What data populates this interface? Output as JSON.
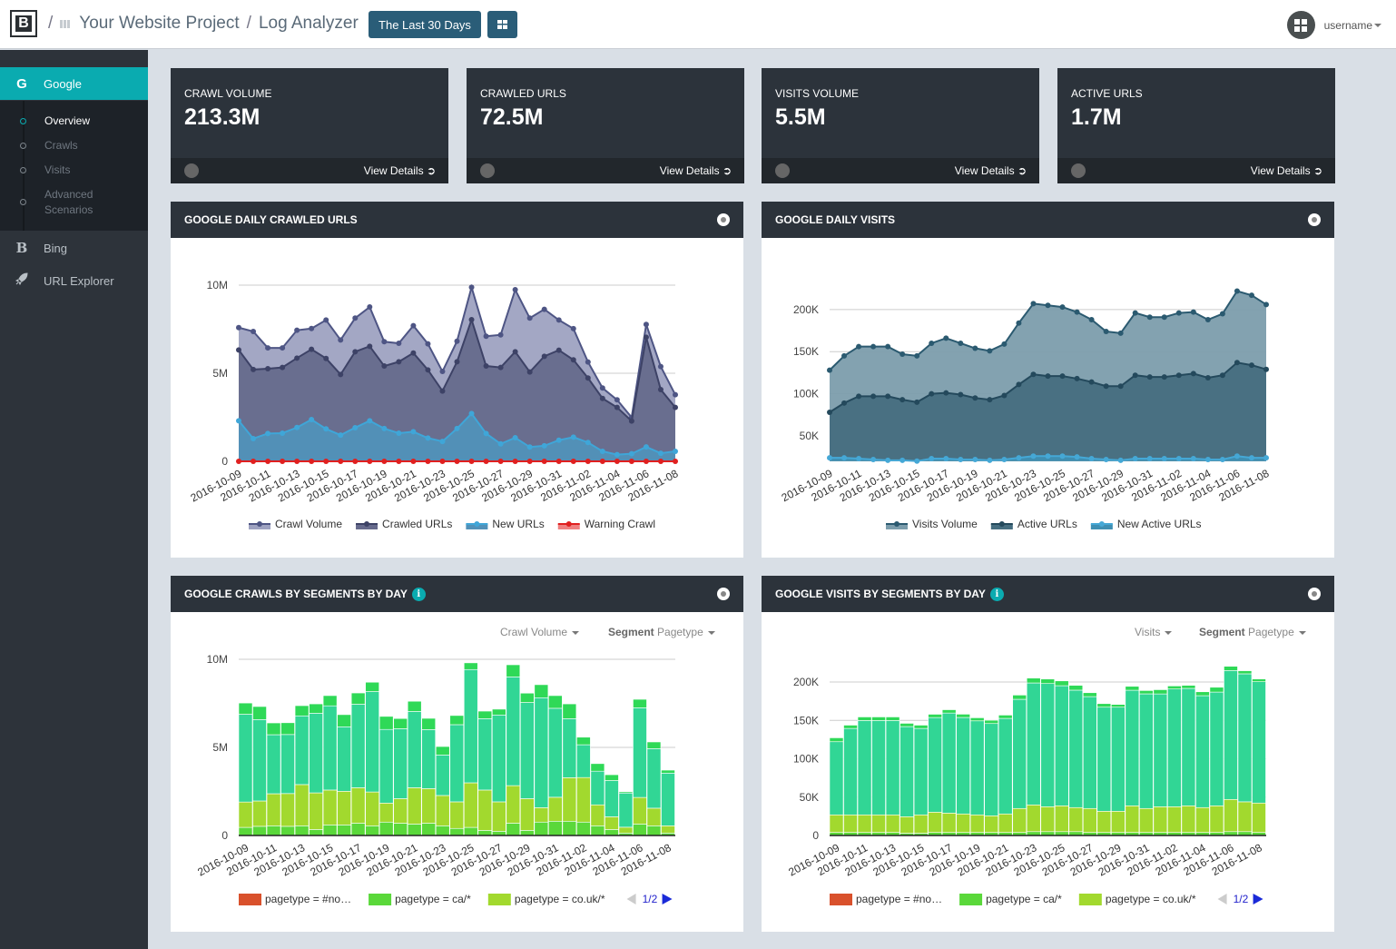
{
  "header": {
    "logo": "B",
    "project": "Your Website Project",
    "page": "Log Analyzer",
    "date_range": "The Last 30 Days",
    "username": "username"
  },
  "sidebar": {
    "items": [
      {
        "label": "Google",
        "icon": "G"
      },
      {
        "label": "Bing",
        "icon": "B"
      },
      {
        "label": "URL Explorer",
        "icon": "rocket"
      }
    ],
    "sub_items": [
      {
        "label": "Overview"
      },
      {
        "label": "Crawls"
      },
      {
        "label": "Visits"
      },
      {
        "label": "Advanced Scenarios"
      }
    ]
  },
  "stats": [
    {
      "label": "CRAWL VOLUME",
      "value": "213.3M",
      "link": "View Details"
    },
    {
      "label": "CRAWLED URLS",
      "value": "72.5M",
      "link": "View Details"
    },
    {
      "label": "VISITS VOLUME",
      "value": "5.5M",
      "link": "View Details"
    },
    {
      "label": "ACTIVE URLS",
      "value": "1.7M",
      "link": "View Details"
    }
  ],
  "panels": [
    {
      "title": "GOOGLE DAILY CRAWLED URLS"
    },
    {
      "title": "GOOGLE DAILY VISITS"
    },
    {
      "title": "GOOGLE CRAWLS BY SEGMENTS BY DAY",
      "metric": "Crawl Volume",
      "segment_label": "Segment",
      "segment_value": "Pagetype"
    },
    {
      "title": "GOOGLE VISITS BY SEGMENTS BY DAY",
      "metric": "Visits",
      "segment_label": "Segment",
      "segment_value": "Pagetype"
    }
  ],
  "colors": {
    "accent": "#0aabb0",
    "header_btn": "#2a5d78",
    "panel_header": "#2c333b"
  },
  "chart_data": [
    {
      "type": "area",
      "grid": true,
      "legend": "bottom",
      "ylim": [
        0,
        10000000
      ],
      "yticks": [
        {
          "v": 0,
          "label": "0"
        },
        {
          "v": 5000000,
          "label": "5M"
        },
        {
          "v": 10000000,
          "label": "10M"
        }
      ],
      "x": [
        "2016-10-09",
        "2016-10-10",
        "2016-10-11",
        "2016-10-12",
        "2016-10-13",
        "2016-10-14",
        "2016-10-15",
        "2016-10-16",
        "2016-10-17",
        "2016-10-18",
        "2016-10-19",
        "2016-10-20",
        "2016-10-21",
        "2016-10-22",
        "2016-10-23",
        "2016-10-24",
        "2016-10-25",
        "2016-10-26",
        "2016-10-27",
        "2016-10-28",
        "2016-10-29",
        "2016-10-30",
        "2016-10-31",
        "2016-11-01",
        "2016-11-02",
        "2016-11-03",
        "2016-11-04",
        "2016-11-05",
        "2016-11-06",
        "2016-11-07",
        "2016-11-08"
      ],
      "series": [
        {
          "name": "Crawl Volume",
          "fill": "#9ea2c1",
          "line": "#4e5584",
          "values": [
            7590000,
            7370000,
            6440000,
            6440000,
            7440000,
            7540000,
            8020000,
            6890000,
            8130000,
            8760000,
            6790000,
            6700000,
            7700000,
            6670000,
            5100000,
            6820000,
            9880000,
            7100000,
            7180000,
            9740000,
            8130000,
            8630000,
            8020000,
            7530000,
            5640000,
            4160000,
            3490000,
            2490000,
            7770000,
            5380000,
            3780000
          ]
        },
        {
          "name": "Crawled URLs",
          "fill": "#666a8c",
          "line": "#3d4266",
          "values": [
            6320000,
            5210000,
            5260000,
            5330000,
            5860000,
            6360000,
            5840000,
            4930000,
            6220000,
            6530000,
            5410000,
            5650000,
            6150000,
            5190000,
            3990000,
            5650000,
            8040000,
            5410000,
            5330000,
            6220000,
            5070000,
            5960000,
            6310000,
            5760000,
            4730000,
            3570000,
            3060000,
            2290000,
            7040000,
            4070000,
            3060000
          ]
        },
        {
          "name": "New URLs",
          "fill": "#5191b9",
          "line": "#3fa6d8",
          "values": [
            2300000,
            1290000,
            1580000,
            1600000,
            1920000,
            2370000,
            1840000,
            1490000,
            1910000,
            2300000,
            1860000,
            1600000,
            1680000,
            1320000,
            1130000,
            1860000,
            2710000,
            1580000,
            990000,
            1340000,
            810000,
            880000,
            1200000,
            1370000,
            1070000,
            570000,
            380000,
            430000,
            820000,
            460000,
            570000
          ]
        },
        {
          "name": "Warning Crawl",
          "fill": "#ef8080",
          "line": "#e02020",
          "values": [
            0,
            0,
            0,
            0,
            0,
            0,
            0,
            0,
            0,
            0,
            0,
            0,
            0,
            0,
            0,
            0,
            0,
            0,
            0,
            0,
            0,
            0,
            0,
            0,
            0,
            0,
            0,
            0,
            0,
            0,
            0
          ]
        }
      ]
    },
    {
      "type": "area",
      "grid": true,
      "legend": "bottom",
      "ylim": [
        20000,
        225000
      ],
      "yticks": [
        {
          "v": 50000,
          "label": "50K"
        },
        {
          "v": 100000,
          "label": "100K"
        },
        {
          "v": 150000,
          "label": "150K"
        },
        {
          "v": 200000,
          "label": "200K"
        }
      ],
      "x": [
        "2016-10-09",
        "2016-10-10",
        "2016-10-11",
        "2016-10-12",
        "2016-10-13",
        "2016-10-14",
        "2016-10-15",
        "2016-10-16",
        "2016-10-17",
        "2016-10-18",
        "2016-10-19",
        "2016-10-20",
        "2016-10-21",
        "2016-10-22",
        "2016-10-23",
        "2016-10-24",
        "2016-10-25",
        "2016-10-26",
        "2016-10-27",
        "2016-10-28",
        "2016-10-29",
        "2016-10-30",
        "2016-10-31",
        "2016-11-01",
        "2016-11-02",
        "2016-11-03",
        "2016-11-04",
        "2016-11-05",
        "2016-11-06",
        "2016-11-07",
        "2016-11-08"
      ],
      "series": [
        {
          "name": "Visits Volume",
          "fill": "#7c9dac",
          "line": "#2b5a70",
          "values": [
            128000,
            145000,
            156000,
            156000,
            156000,
            147000,
            145000,
            160000,
            166000,
            160000,
            154000,
            151000,
            159000,
            184000,
            207000,
            205000,
            203000,
            197000,
            188000,
            174000,
            172000,
            196000,
            191000,
            191000,
            196000,
            197000,
            188000,
            195000,
            222000,
            217000,
            206000
          ]
        },
        {
          "name": "Active URLs",
          "fill": "#466e80",
          "line": "#24495c",
          "values": [
            78000,
            89000,
            97000,
            97000,
            97000,
            93000,
            90000,
            100000,
            101000,
            99000,
            95000,
            93000,
            98000,
            111000,
            123000,
            121000,
            121000,
            118000,
            114000,
            109000,
            109000,
            122000,
            120000,
            120000,
            122000,
            124000,
            119000,
            122000,
            137000,
            134000,
            129000
          ]
        },
        {
          "name": "New Active URLs",
          "fill": "#3f8fb3",
          "line": "#45a8d6",
          "values": [
            24000,
            24000,
            23000,
            22000,
            21000,
            21000,
            20000,
            23000,
            23000,
            22000,
            22000,
            21000,
            22000,
            24000,
            26000,
            26000,
            26000,
            25000,
            23000,
            22000,
            21000,
            23000,
            23000,
            23000,
            23000,
            23000,
            22000,
            22000,
            26000,
            24000,
            24000
          ]
        }
      ]
    },
    {
      "type": "bar",
      "stacked": true,
      "grid": true,
      "legend": "bottom",
      "legend_page": "1/2",
      "ylim": [
        0,
        10000000
      ],
      "yticks": [
        {
          "v": 0,
          "label": "0"
        },
        {
          "v": 5000000,
          "label": "5M"
        },
        {
          "v": 10000000,
          "label": "10M"
        }
      ],
      "x": [
        "2016-10-09",
        "2016-10-10",
        "2016-10-11",
        "2016-10-12",
        "2016-10-13",
        "2016-10-14",
        "2016-10-15",
        "2016-10-16",
        "2016-10-17",
        "2016-10-18",
        "2016-10-19",
        "2016-10-20",
        "2016-10-21",
        "2016-10-22",
        "2016-10-23",
        "2016-10-24",
        "2016-10-25",
        "2016-10-26",
        "2016-10-27",
        "2016-10-28",
        "2016-10-29",
        "2016-10-30",
        "2016-10-31",
        "2016-11-01",
        "2016-11-02",
        "2016-11-03",
        "2016-11-04",
        "2016-11-05",
        "2016-11-06",
        "2016-11-07",
        "2016-11-08"
      ],
      "series": [
        {
          "name": "pagetype = #no…",
          "color": "#d9512c",
          "values": [
            0,
            0,
            0,
            0,
            0,
            0,
            0,
            0,
            0,
            0,
            0,
            0,
            0,
            0,
            0,
            0,
            0,
            0,
            0,
            0,
            0,
            0,
            0,
            0,
            0,
            0,
            0,
            0,
            0,
            0,
            0
          ]
        },
        {
          "name": "pagetype = ca/*",
          "color": "#5ad83a",
          "values": [
            460000,
            520000,
            550000,
            520000,
            550000,
            340000,
            600000,
            600000,
            700000,
            550000,
            760000,
            700000,
            650000,
            700000,
            550000,
            400000,
            460000,
            290000,
            240000,
            700000,
            290000,
            760000,
            810000,
            810000,
            760000,
            550000,
            340000,
            140000,
            650000,
            550000,
            140000
          ]
        },
        {
          "name": "pagetype = co.uk/*",
          "color": "#a2d92e",
          "values": [
            1440000,
            1440000,
            1820000,
            1860000,
            2340000,
            2080000,
            1980000,
            1910000,
            2010000,
            1920000,
            1080000,
            1390000,
            2060000,
            1960000,
            1720000,
            1510000,
            2530000,
            2290000,
            1670000,
            2130000,
            1800000,
            820000,
            1360000,
            2470000,
            2530000,
            1190000,
            720000,
            330000,
            1510000,
            1000000,
            410000
          ]
        },
        {
          "color": "#31d695",
          "values": [
            4980000,
            4620000,
            3350000,
            3350000,
            3900000,
            4520000,
            4780000,
            3660000,
            4740000,
            5700000,
            4180000,
            3970000,
            4330000,
            3350000,
            2300000,
            4380000,
            6430000,
            4050000,
            4930000,
            6170000,
            5460000,
            6240000,
            5050000,
            3350000,
            1860000,
            1910000,
            2060000,
            1940000,
            5090000,
            3380000,
            2990000
          ]
        },
        {
          "color": "#2fd957",
          "values": [
            640000,
            740000,
            670000,
            670000,
            580000,
            530000,
            580000,
            690000,
            640000,
            530000,
            740000,
            580000,
            580000,
            640000,
            480000,
            520000,
            380000,
            430000,
            330000,
            690000,
            530000,
            740000,
            720000,
            840000,
            430000,
            430000,
            330000,
            70000,
            480000,
            380000,
            170000
          ]
        }
      ]
    },
    {
      "type": "bar",
      "stacked": true,
      "grid": true,
      "legend": "bottom",
      "legend_page": "1/2",
      "ylim": [
        0,
        225000
      ],
      "yticks": [
        {
          "v": 0,
          "label": "0"
        },
        {
          "v": 50000,
          "label": "50K"
        },
        {
          "v": 100000,
          "label": "100K"
        },
        {
          "v": 150000,
          "label": "150K"
        },
        {
          "v": 200000,
          "label": "200K"
        }
      ],
      "x": [
        "2016-10-09",
        "2016-10-10",
        "2016-10-11",
        "2016-10-12",
        "2016-10-13",
        "2016-10-14",
        "2016-10-15",
        "2016-10-16",
        "2016-10-17",
        "2016-10-18",
        "2016-10-19",
        "2016-10-20",
        "2016-10-21",
        "2016-10-22",
        "2016-10-23",
        "2016-10-24",
        "2016-10-25",
        "2016-10-26",
        "2016-10-27",
        "2016-10-28",
        "2016-10-29",
        "2016-10-30",
        "2016-10-31",
        "2016-11-01",
        "2016-11-02",
        "2016-11-03",
        "2016-11-04",
        "2016-11-05",
        "2016-11-06",
        "2016-11-07",
        "2016-11-08"
      ],
      "series": [
        {
          "name": "pagetype = #no…",
          "color": "#d9512c",
          "values": [
            0,
            0,
            0,
            0,
            0,
            0,
            0,
            0,
            0,
            0,
            0,
            0,
            0,
            0,
            0,
            0,
            0,
            0,
            0,
            0,
            0,
            0,
            0,
            0,
            0,
            0,
            0,
            0,
            0,
            0,
            0
          ]
        },
        {
          "name": "pagetype = ca/*",
          "color": "#5ad83a",
          "values": [
            4000,
            4000,
            4000,
            4000,
            4000,
            3000,
            3000,
            4000,
            4000,
            4000,
            4000,
            4000,
            4000,
            4000,
            5000,
            5000,
            5000,
            5000,
            4000,
            4000,
            4000,
            4000,
            4000,
            4000,
            4000,
            4000,
            4000,
            4000,
            5000,
            5000,
            4000
          ]
        },
        {
          "name": "pagetype = co.uk/*",
          "color": "#a2d92e",
          "values": [
            22900,
            22900,
            22900,
            22900,
            22900,
            21500,
            23900,
            26400,
            25200,
            24100,
            22900,
            21700,
            24100,
            31200,
            34900,
            32500,
            33700,
            31400,
            31200,
            27600,
            27600,
            34700,
            31200,
            33500,
            33500,
            34700,
            32400,
            34700,
            42000,
            38900,
            38300
          ]
        },
        {
          "color": "#31d695",
          "values": [
            95300,
            112600,
            122900,
            122900,
            122900,
            117400,
            112600,
            123300,
            130400,
            125700,
            122500,
            120200,
            124500,
            142300,
            158900,
            160500,
            156500,
            153000,
            145800,
            135600,
            135600,
            150600,
            149400,
            147000,
            153400,
            153000,
            145800,
            148200,
            168000,
            166800,
            158100
          ]
        },
        {
          "color": "#2fd957",
          "values": [
            5100,
            4300,
            4700,
            4700,
            4700,
            4300,
            4300,
            4300,
            4300,
            4300,
            4000,
            4300,
            4300,
            5500,
            6300,
            5900,
            6300,
            6300,
            5100,
            4700,
            3600,
            5100,
            4300,
            5500,
            4000,
            4000,
            5100,
            6300,
            5500,
            4000,
            3600
          ]
        }
      ]
    }
  ]
}
